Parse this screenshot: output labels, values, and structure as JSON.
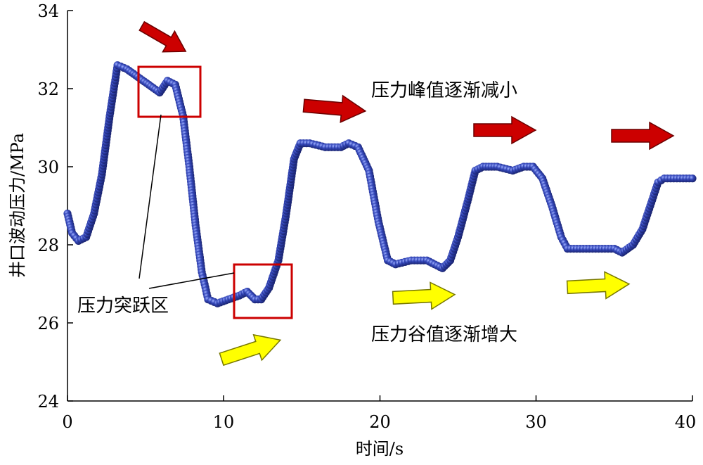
{
  "chart_data": {
    "type": "scatter",
    "xlabel": "时间/s",
    "ylabel": "井口波动压力/MPa",
    "xlim": [
      0,
      40
    ],
    "ylim": [
      24,
      34
    ],
    "xticks": [
      0,
      10,
      20,
      30,
      40
    ],
    "yticks": [
      24,
      26,
      28,
      30,
      32,
      34
    ],
    "grid": false,
    "marker_color": "#2a3d9e",
    "series": [
      {
        "points": [
          [
            0.0,
            28.8
          ],
          [
            0.3,
            28.3
          ],
          [
            0.7,
            28.1
          ],
          [
            1.2,
            28.2
          ],
          [
            1.7,
            28.8
          ],
          [
            2.2,
            29.8
          ],
          [
            2.7,
            31.3
          ],
          [
            3.2,
            32.6
          ],
          [
            3.8,
            32.5
          ],
          [
            4.5,
            32.3
          ],
          [
            5.2,
            32.1
          ],
          [
            5.9,
            31.9
          ],
          [
            6.4,
            32.2
          ],
          [
            6.9,
            32.1
          ],
          [
            7.4,
            31.3
          ],
          [
            7.8,
            30.0
          ],
          [
            8.2,
            28.5
          ],
          [
            8.6,
            27.3
          ],
          [
            9.0,
            26.6
          ],
          [
            9.6,
            26.5
          ],
          [
            10.3,
            26.6
          ],
          [
            11.0,
            26.7
          ],
          [
            11.5,
            26.8
          ],
          [
            12.0,
            26.6
          ],
          [
            12.4,
            26.6
          ],
          [
            12.9,
            26.9
          ],
          [
            13.5,
            27.6
          ],
          [
            14.0,
            28.8
          ],
          [
            14.5,
            30.2
          ],
          [
            14.9,
            30.6
          ],
          [
            15.5,
            30.6
          ],
          [
            16.5,
            30.5
          ],
          [
            17.5,
            30.5
          ],
          [
            18.0,
            30.6
          ],
          [
            18.6,
            30.5
          ],
          [
            19.3,
            29.9
          ],
          [
            19.9,
            28.6
          ],
          [
            20.5,
            27.6
          ],
          [
            21.0,
            27.5
          ],
          [
            22.0,
            27.6
          ],
          [
            23.0,
            27.6
          ],
          [
            23.5,
            27.5
          ],
          [
            24.0,
            27.4
          ],
          [
            24.5,
            27.6
          ],
          [
            25.0,
            28.2
          ],
          [
            25.6,
            29.1
          ],
          [
            26.1,
            29.9
          ],
          [
            26.6,
            30.0
          ],
          [
            27.5,
            30.0
          ],
          [
            28.5,
            29.9
          ],
          [
            29.2,
            30.0
          ],
          [
            29.8,
            30.0
          ],
          [
            30.4,
            29.7
          ],
          [
            31.0,
            29.0
          ],
          [
            31.6,
            28.2
          ],
          [
            32.0,
            27.9
          ],
          [
            33.0,
            27.9
          ],
          [
            34.0,
            27.9
          ],
          [
            35.0,
            27.9
          ],
          [
            35.5,
            27.8
          ],
          [
            36.2,
            28.0
          ],
          [
            36.8,
            28.4
          ],
          [
            37.3,
            29.0
          ],
          [
            37.8,
            29.6
          ],
          [
            38.2,
            29.7
          ],
          [
            39.0,
            29.7
          ],
          [
            40.0,
            29.7
          ]
        ]
      }
    ],
    "annotations": {
      "peak_text": "压力峰值逐渐减小",
      "valley_text": "压力谷值逐渐增大",
      "jump_text": "压力突跃区"
    },
    "arrow_colors": {
      "peak_arrows": "#cc0000",
      "valley_arrows": "#ffff00",
      "box_border": "#cc0000"
    }
  }
}
